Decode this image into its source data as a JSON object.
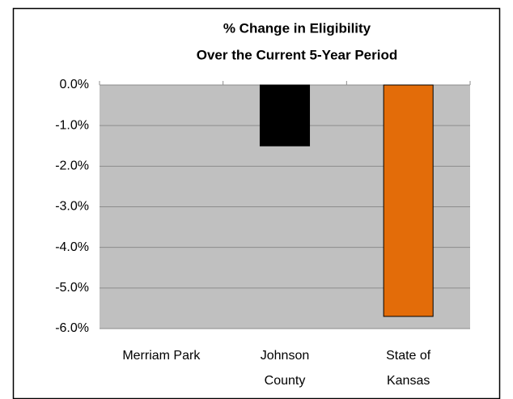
{
  "chart_data": {
    "type": "bar",
    "title": [
      "% Change in Eligibility",
      "Over the Current 5-Year Period"
    ],
    "categories": [
      [
        "Merriam Park"
      ],
      [
        "Johnson",
        "County"
      ],
      [
        "State of",
        "Kansas"
      ]
    ],
    "values": [
      0,
      -1.5,
      -5.7
    ],
    "colors": [
      "#c0c0c0",
      "#000000",
      "#e36c09"
    ],
    "ylim": [
      -6,
      0
    ],
    "yticks": [
      {
        "value": 0,
        "label": "0.0%"
      },
      {
        "value": -1,
        "label": "-1.0%"
      },
      {
        "value": -2,
        "label": "-2.0%"
      },
      {
        "value": -3,
        "label": "-3.0%"
      },
      {
        "value": -4,
        "label": "-4.0%"
      },
      {
        "value": -5,
        "label": "-5.0%"
      },
      {
        "value": -6,
        "label": "-6.0%"
      }
    ],
    "grid": true
  }
}
